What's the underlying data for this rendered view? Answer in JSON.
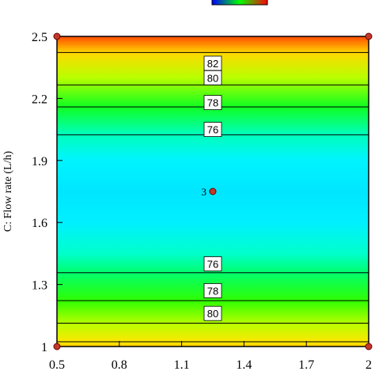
{
  "chart_data": {
    "type": "contour",
    "xlim": [
      0.5,
      2
    ],
    "ylim": [
      1,
      2.5
    ],
    "x_ticks": [
      "0.5",
      "0.8",
      "1.1",
      "1.4",
      "1.7",
      "2"
    ],
    "y_ticks": [
      "1",
      "1.3",
      "1.6",
      "1.9",
      "2.2",
      "2.5"
    ],
    "ylabel": "C: Flow rate (L/h)",
    "xlabel": "",
    "colorbar": {
      "low": "#0000ff",
      "mid": "#00ff00",
      "high": "#ff0000"
    },
    "contours": [
      {
        "y": 2.422,
        "label": "82",
        "show_label": true
      },
      {
        "y": 2.265,
        "label": "80",
        "show_label": true
      },
      {
        "y": 2.159,
        "label": "78",
        "show_label": true
      },
      {
        "y": 2.024,
        "label": "76",
        "show_label": true
      },
      {
        "y": 1.357,
        "label": "76",
        "show_label": true
      },
      {
        "y": 1.222,
        "label": "78",
        "show_label": true
      },
      {
        "y": 1.113,
        "label": "80",
        "show_label": true
      },
      {
        "y": 1.023,
        "label": "82",
        "show_label": false
      }
    ],
    "label_positions_y": [
      2.37,
      2.3,
      2.18,
      2.05,
      1.4,
      1.27,
      1.16,
      1.07
    ],
    "design_points": [
      {
        "x": 0.5,
        "y": 2.5,
        "label": ""
      },
      {
        "x": 2,
        "y": 2.5,
        "label": ""
      },
      {
        "x": 0.5,
        "y": 1,
        "label": ""
      },
      {
        "x": 2,
        "y": 1,
        "label": ""
      },
      {
        "x": 1.25,
        "y": 1.75,
        "label": "3"
      }
    ],
    "gradient_stops": [
      {
        "y": 2.5,
        "color": "#ff4a00"
      },
      {
        "y": 2.42,
        "color": "#ffd800"
      },
      {
        "y": 2.3,
        "color": "#b8ff00"
      },
      {
        "y": 2.16,
        "color": "#10ff20"
      },
      {
        "y": 2.03,
        "color": "#00ffb8"
      },
      {
        "y": 1.9,
        "color": "#00f4ff"
      },
      {
        "y": 1.75,
        "color": "#00e6ff"
      },
      {
        "y": 1.6,
        "color": "#00f0ff"
      },
      {
        "y": 1.45,
        "color": "#00ffcc"
      },
      {
        "y": 1.36,
        "color": "#00ff70"
      },
      {
        "y": 1.22,
        "color": "#30ff00"
      },
      {
        "y": 1.11,
        "color": "#b8ff00"
      },
      {
        "y": 1.02,
        "color": "#ffe600"
      },
      {
        "y": 1.0,
        "color": "#ffd000"
      }
    ]
  }
}
